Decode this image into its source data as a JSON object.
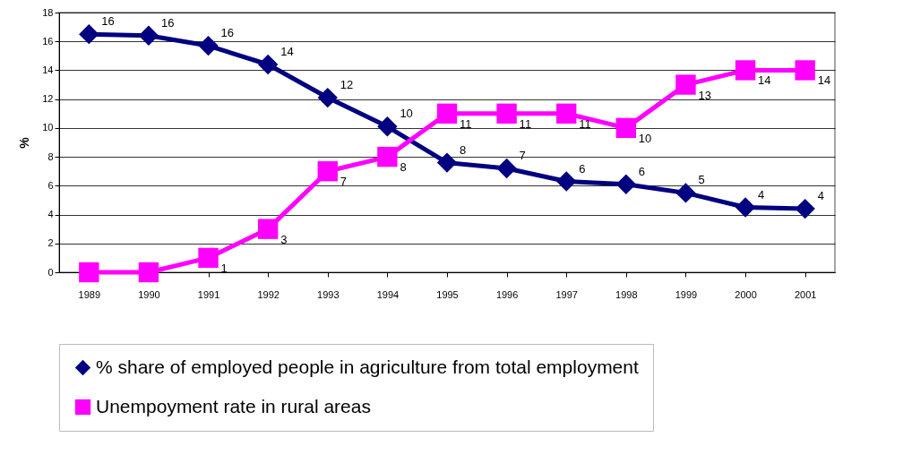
{
  "chart_data": {
    "type": "line",
    "ylabel": "%",
    "categories": [
      "1989",
      "1990",
      "1991",
      "1992",
      "1993",
      "1994",
      "1995",
      "1996",
      "1997",
      "1998",
      "1999",
      "2000",
      "2001"
    ],
    "series": [
      {
        "name": "% share of employed people in agriculture from total employment",
        "color": "#000080",
        "marker": "diamond",
        "values": [
          16.5,
          16.4,
          15.7,
          14.4,
          12.1,
          10.1,
          7.6,
          7.2,
          6.3,
          6.1,
          5.5,
          4.5,
          4.4
        ],
        "value_labels": [
          "16",
          "16",
          "16",
          "14",
          "12",
          "10",
          "8",
          "7",
          "6",
          "6",
          "5",
          "4",
          "4"
        ]
      },
      {
        "name": "Unempoyment rate in rural areas",
        "color": "#ff00ff",
        "marker": "square",
        "values": [
          0,
          0,
          1,
          3,
          7,
          8,
          11,
          11,
          11,
          10,
          13,
          14,
          14
        ],
        "value_labels": [
          null,
          null,
          "1",
          "3",
          "7",
          "8",
          "11",
          "11",
          "11",
          "10",
          "13",
          "14",
          "14"
        ]
      }
    ],
    "ylim": [
      0,
      18
    ],
    "yticks": [
      0,
      2,
      4,
      6,
      8,
      10,
      12,
      14,
      16,
      18
    ],
    "grid": "y",
    "legend": "bottom",
    "line_style": "solid"
  }
}
